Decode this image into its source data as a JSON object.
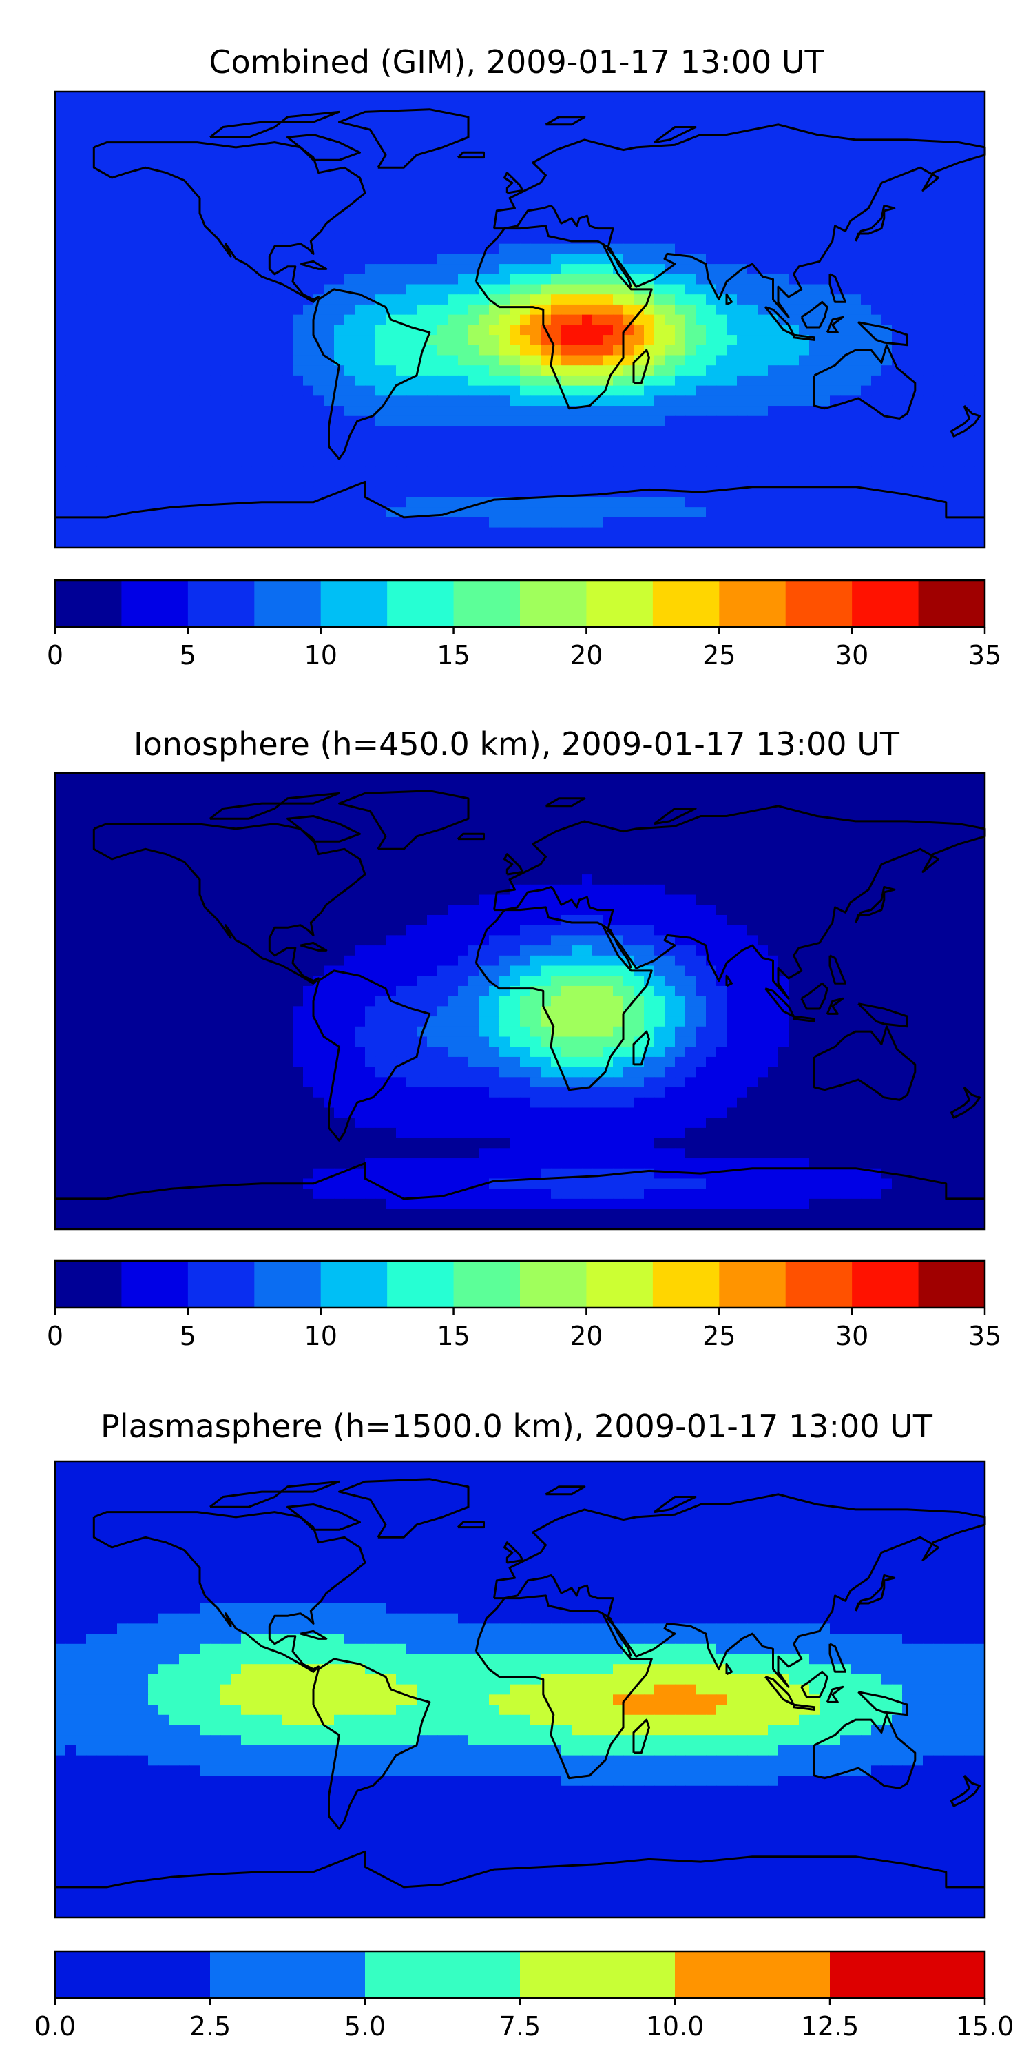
{
  "chart_data": [
    {
      "type": "heatmap",
      "title": "Combined (GIM), 2009-01-17 13:00 UT",
      "xlim": [
        -180,
        180
      ],
      "ylim": [
        -90,
        90
      ],
      "levels": [
        0,
        2.5,
        5,
        7.5,
        10,
        12.5,
        15,
        17.5,
        20,
        22.5,
        25,
        27.5,
        30,
        32.5,
        35
      ],
      "colorbar_ticks": [
        "0",
        "5",
        "10",
        "15",
        "20",
        "25",
        "30",
        "35"
      ],
      "background_level_color": "#0a2ef0",
      "field_peaks": [
        {
          "lon": 25,
          "lat": -5,
          "value": 31,
          "spread_lon": 40,
          "spread_lat": 22
        },
        {
          "lon": -45,
          "lat": -10,
          "value": 13,
          "spread_lon": 35,
          "spread_lat": 25
        },
        {
          "lon": 100,
          "lat": -10,
          "value": 10,
          "spread_lon": 45,
          "spread_lat": 25
        },
        {
          "lon": 10,
          "lat": -75,
          "value": 8,
          "spread_lon": 120,
          "spread_lat": 10
        }
      ],
      "base_value": 6
    },
    {
      "type": "heatmap",
      "title": "Ionosphere  (h=450.0 km), 2009-01-17 13:00 UT",
      "xlim": [
        -180,
        180
      ],
      "ylim": [
        -90,
        90
      ],
      "levels": [
        0,
        2.5,
        5,
        7.5,
        10,
        12.5,
        15,
        17.5,
        20,
        22.5,
        25,
        27.5,
        30,
        32.5,
        35
      ],
      "colorbar_ticks": [
        "0",
        "5",
        "10",
        "15",
        "20",
        "25",
        "30",
        "35"
      ],
      "field_peaks": [
        {
          "lon": 25,
          "lat": -5,
          "value": 20,
          "spread_lon": 42,
          "spread_lat": 28
        },
        {
          "lon": -45,
          "lat": -15,
          "value": 6,
          "spread_lon": 30,
          "spread_lat": 25
        },
        {
          "lon": 30,
          "lat": -72,
          "value": 6,
          "spread_lon": 80,
          "spread_lat": 8
        }
      ],
      "base_value": 2
    },
    {
      "type": "heatmap",
      "title": "Plasmasphere (h=1500.0 km), 2009-01-17 13:00 UT",
      "xlim": [
        -180,
        180
      ],
      "ylim": [
        -90,
        90
      ],
      "levels": [
        0,
        2.5,
        5,
        7.5,
        10,
        12.5,
        15
      ],
      "colorbar_ticks": [
        "0.0",
        "2.5",
        "5.0",
        "7.5",
        "10.0",
        "12.5",
        "15.0"
      ],
      "field_peaks": [
        {
          "lon": 60,
          "lat": -5,
          "value": 10.5,
          "spread_lon": 90,
          "spread_lat": 22
        },
        {
          "lon": -90,
          "lat": 0,
          "value": 8.5,
          "spread_lon": 60,
          "spread_lat": 25
        }
      ],
      "base_value": 1.5
    }
  ],
  "colormaps": {
    "jet14": [
      "#000096",
      "#0000e6",
      "#0a2ef0",
      "#0b6df2",
      "#00bff5",
      "#26ffd3",
      "#5cff98",
      "#a0ff5c",
      "#ccff33",
      "#ffd600",
      "#ff9400",
      "#ff5100",
      "#ff1200",
      "#a00000"
    ],
    "jet6": [
      "#0018e0",
      "#0b70f5",
      "#36ffc2",
      "#c8ff36",
      "#ff9400",
      "#dd0000"
    ]
  },
  "coastline_color": "#000000"
}
